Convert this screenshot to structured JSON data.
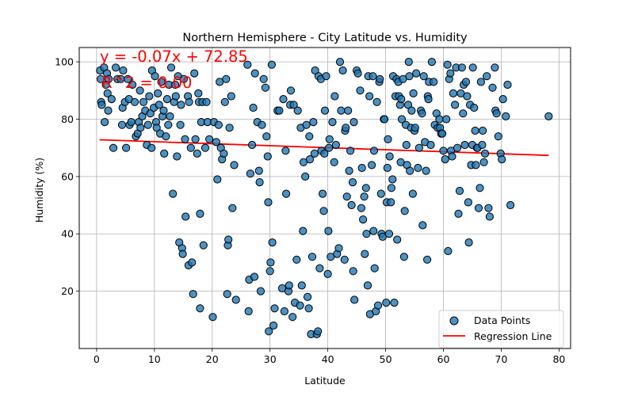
{
  "chart_data": {
    "type": "scatter",
    "title": "Northern Hemisphere - City Latitude vs. Humidity",
    "xlabel": "Latitude",
    "ylabel": "Humidity (%)",
    "xlim": [
      -3,
      82
    ],
    "ylim": [
      0,
      105
    ],
    "xticks": [
      0,
      10,
      20,
      30,
      40,
      50,
      60,
      70,
      80
    ],
    "yticks": [
      20,
      40,
      60,
      80,
      100
    ],
    "grid": true,
    "legend": {
      "placement": "lower right",
      "entries": [
        "Data Points",
        "Regression Line"
      ]
    },
    "annotations": {
      "equation": "y = -0.07x + 72.85",
      "r_squared": "R^2 = 0.00"
    },
    "regression": {
      "slope": -0.07,
      "intercept": 72.85,
      "x_range": [
        0.5,
        78.2
      ]
    },
    "colors": {
      "points": "#1f77b4",
      "edge": "#000000",
      "line": "#ff0000",
      "annotation": "#ff0000"
    },
    "points": [
      [
        0.6,
        97
      ],
      [
        0.7,
        94
      ],
      [
        0.8,
        86
      ],
      [
        0.9,
        85
      ],
      [
        1.3,
        98
      ],
      [
        1.4,
        79
      ],
      [
        1.6,
        92
      ],
      [
        1.8,
        96
      ],
      [
        1.9,
        89
      ],
      [
        2.0,
        83
      ],
      [
        2.1,
        94
      ],
      [
        2.6,
        87
      ],
      [
        2.9,
        70
      ],
      [
        3.3,
        98
      ],
      [
        3.6,
        94
      ],
      [
        4.2,
        94
      ],
      [
        4.4,
        78
      ],
      [
        4.5,
        84
      ],
      [
        4.6,
        97
      ],
      [
        4.9,
        86
      ],
      [
        5.1,
        70
      ],
      [
        5.4,
        94
      ],
      [
        5.6,
        87
      ],
      [
        5.7,
        78
      ],
      [
        6.0,
        79
      ],
      [
        6.2,
        92
      ],
      [
        6.6,
        86
      ],
      [
        6.8,
        74
      ],
      [
        7.1,
        75
      ],
      [
        7.3,
        79
      ],
      [
        7.5,
        90
      ],
      [
        7.6,
        77
      ],
      [
        7.9,
        81
      ],
      [
        8.1,
        86
      ],
      [
        8.4,
        83
      ],
      [
        8.7,
        71
      ],
      [
        8.9,
        78
      ],
      [
        9.1,
        88
      ],
      [
        9.3,
        82
      ],
      [
        9.5,
        70
      ],
      [
        9.6,
        97
      ],
      [
        9.9,
        84
      ],
      [
        10.1,
        95
      ],
      [
        10.3,
        79
      ],
      [
        10.4,
        77
      ],
      [
        10.6,
        89
      ],
      [
        10.8,
        85
      ],
      [
        11.0,
        75
      ],
      [
        11.2,
        93
      ],
      [
        11.4,
        81
      ],
      [
        11.6,
        83
      ],
      [
        11.7,
        68
      ],
      [
        12.0,
        74
      ],
      [
        12.2,
        87
      ],
      [
        12.4,
        78
      ],
      [
        12.5,
        92
      ],
      [
        12.7,
        81
      ],
      [
        12.9,
        98
      ],
      [
        13.2,
        54
      ],
      [
        13.4,
        86
      ],
      [
        13.6,
        92
      ],
      [
        13.7,
        88
      ],
      [
        13.9,
        67
      ],
      [
        14.1,
        95
      ],
      [
        14.3,
        37
      ],
      [
        14.5,
        78
      ],
      [
        14.6,
        85
      ],
      [
        14.8,
        35
      ],
      [
        14.9,
        33
      ],
      [
        15.1,
        94
      ],
      [
        15.3,
        73
      ],
      [
        15.4,
        46
      ],
      [
        15.8,
        88
      ],
      [
        15.9,
        29
      ],
      [
        16.0,
        86
      ],
      [
        16.3,
        70
      ],
      [
        16.5,
        30
      ],
      [
        16.7,
        19
      ],
      [
        16.9,
        96
      ],
      [
        17.1,
        73
      ],
      [
        17.4,
        68
      ],
      [
        17.6,
        89
      ],
      [
        17.7,
        86
      ],
      [
        17.9,
        47
      ],
      [
        17.9,
        14
      ],
      [
        18.1,
        79
      ],
      [
        18.3,
        86
      ],
      [
        18.5,
        36
      ],
      [
        18.8,
        70
      ],
      [
        19.0,
        86
      ],
      [
        19.2,
        79
      ],
      [
        19.5,
        73
      ],
      [
        20.1,
        11
      ],
      [
        20.3,
        79
      ],
      [
        20.7,
        72
      ],
      [
        20.9,
        59
      ],
      [
        21.1,
        78
      ],
      [
        21.3,
        93
      ],
      [
        21.5,
        70
      ],
      [
        21.7,
        66
      ],
      [
        22.0,
        68
      ],
      [
        22.2,
        86
      ],
      [
        22.4,
        94
      ],
      [
        22.6,
        19
      ],
      [
        22.7,
        36
      ],
      [
        22.8,
        38
      ],
      [
        23.0,
        77
      ],
      [
        23.3,
        88
      ],
      [
        23.5,
        49
      ],
      [
        23.8,
        64
      ],
      [
        24.1,
        17
      ],
      [
        26.1,
        99
      ],
      [
        26.3,
        13
      ],
      [
        26.4,
        24
      ],
      [
        26.6,
        61
      ],
      [
        26.9,
        71
      ],
      [
        27.1,
        84
      ],
      [
        27.3,
        25
      ],
      [
        27.4,
        96
      ],
      [
        27.8,
        79
      ],
      [
        28.1,
        62
      ],
      [
        28.2,
        58
      ],
      [
        28.4,
        20
      ],
      [
        28.6,
        78
      ],
      [
        28.9,
        94
      ],
      [
        29.2,
        91
      ],
      [
        29.4,
        74
      ],
      [
        29.6,
        67
      ],
      [
        29.7,
        51
      ],
      [
        29.8,
        6
      ],
      [
        30.0,
        27
      ],
      [
        30.1,
        30
      ],
      [
        30.3,
        99
      ],
      [
        30.4,
        37
      ],
      [
        30.6,
        8
      ],
      [
        30.8,
        14
      ],
      [
        31.3,
        83
      ],
      [
        31.6,
        83
      ],
      [
        32.1,
        21
      ],
      [
        32.3,
        87
      ],
      [
        32.5,
        13
      ],
      [
        32.7,
        69
      ],
      [
        32.8,
        54
      ],
      [
        33.2,
        20
      ],
      [
        33.3,
        22
      ],
      [
        33.5,
        85
      ],
      [
        33.6,
        90
      ],
      [
        33.9,
        11
      ],
      [
        34.1,
        85
      ],
      [
        34.3,
        16
      ],
      [
        34.6,
        31
      ],
      [
        34.8,
        83
      ],
      [
        35.2,
        15
      ],
      [
        35.3,
        77
      ],
      [
        35.5,
        22
      ],
      [
        35.7,
        41
      ],
      [
        35.8,
        65
      ],
      [
        36.1,
        60
      ],
      [
        36.3,
        78
      ],
      [
        36.5,
        18
      ],
      [
        36.7,
        14
      ],
      [
        36.8,
        74
      ],
      [
        36.9,
        66
      ],
      [
        37.1,
        5
      ],
      [
        37.3,
        32
      ],
      [
        37.5,
        79
      ],
      [
        37.7,
        68
      ],
      [
        37.8,
        97
      ],
      [
        38.1,
        5
      ],
      [
        38.3,
        6
      ],
      [
        38.4,
        95
      ],
      [
        38.6,
        28
      ],
      [
        38.8,
        94
      ],
      [
        38.9,
        69
      ],
      [
        39.1,
        54
      ],
      [
        39.3,
        48
      ],
      [
        39.4,
        68
      ],
      [
        39.5,
        83
      ],
      [
        39.7,
        95
      ],
      [
        40.0,
        26
      ],
      [
        40.1,
        41
      ],
      [
        40.2,
        70
      ],
      [
        40.3,
        73
      ],
      [
        40.5,
        32
      ],
      [
        40.8,
        79
      ],
      [
        41.1,
        65
      ],
      [
        41.2,
        88
      ],
      [
        41.4,
        71
      ],
      [
        41.6,
        33
      ],
      [
        41.9,
        35
      ],
      [
        42.1,
        100
      ],
      [
        42.3,
        83
      ],
      [
        42.6,
        97
      ],
      [
        42.9,
        31
      ],
      [
        43.0,
        76
      ],
      [
        43.1,
        77
      ],
      [
        43.3,
        53
      ],
      [
        43.5,
        83
      ],
      [
        43.7,
        62
      ],
      [
        43.9,
        69
      ],
      [
        44.1,
        50
      ],
      [
        44.3,
        58
      ],
      [
        44.4,
        27
      ],
      [
        44.5,
        79
      ],
      [
        44.6,
        17
      ],
      [
        45.0,
        97
      ],
      [
        45.2,
        96
      ],
      [
        45.6,
        90
      ],
      [
        45.8,
        49
      ],
      [
        45.9,
        63
      ],
      [
        46.1,
        45
      ],
      [
        46.3,
        53
      ],
      [
        46.4,
        33
      ],
      [
        46.6,
        56
      ],
      [
        46.7,
        40
      ],
      [
        46.9,
        22
      ],
      [
        47.0,
        95
      ],
      [
        47.2,
        88
      ],
      [
        47.3,
        12
      ],
      [
        47.6,
        64
      ],
      [
        47.8,
        95
      ],
      [
        47.9,
        41
      ],
      [
        48.0,
        69
      ],
      [
        48.1,
        28
      ],
      [
        48.3,
        13
      ],
      [
        48.5,
        86
      ],
      [
        48.7,
        15
      ],
      [
        48.9,
        93
      ],
      [
        49.0,
        94
      ],
      [
        49.2,
        54
      ],
      [
        49.3,
        40
      ],
      [
        49.5,
        39
      ],
      [
        49.7,
        80
      ],
      [
        49.8,
        80
      ],
      [
        50.1,
        16
      ],
      [
        50.2,
        51
      ],
      [
        50.3,
        63
      ],
      [
        50.4,
        73
      ],
      [
        50.6,
        40
      ],
      [
        50.7,
        67
      ],
      [
        50.9,
        51
      ],
      [
        51.0,
        56
      ],
      [
        51.2,
        59
      ],
      [
        51.3,
        95
      ],
      [
        51.5,
        16
      ],
      [
        51.7,
        88
      ],
      [
        51.9,
        94
      ],
      [
        52.0,
        38
      ],
      [
        52.2,
        93
      ],
      [
        52.3,
        88
      ],
      [
        52.5,
        85
      ],
      [
        52.6,
        65
      ],
      [
        52.7,
        87
      ],
      [
        52.8,
        80
      ],
      [
        53.0,
        94
      ],
      [
        53.2,
        32
      ],
      [
        53.3,
        48
      ],
      [
        53.5,
        78
      ],
      [
        53.6,
        71
      ],
      [
        53.7,
        64
      ],
      [
        53.9,
        85
      ],
      [
        54.0,
        100
      ],
      [
        54.1,
        95
      ],
      [
        54.2,
        62
      ],
      [
        54.4,
        77
      ],
      [
        54.5,
        83
      ],
      [
        54.7,
        54
      ],
      [
        54.8,
        89
      ],
      [
        55.0,
        76
      ],
      [
        55.1,
        77
      ],
      [
        55.3,
        96
      ],
      [
        55.6,
        63
      ],
      [
        55.8,
        70
      ],
      [
        56.1,
        83
      ],
      [
        56.3,
        82
      ],
      [
        56.4,
        43
      ],
      [
        56.6,
        95
      ],
      [
        56.8,
        72
      ],
      [
        57.0,
        62
      ],
      [
        57.2,
        31
      ],
      [
        57.3,
        88
      ],
      [
        57.4,
        87
      ],
      [
        57.5,
        93
      ],
      [
        57.8,
        71
      ],
      [
        58.0,
        100
      ],
      [
        58.3,
        93
      ],
      [
        58.5,
        78
      ],
      [
        58.8,
        82
      ],
      [
        59.0,
        77
      ],
      [
        59.3,
        80
      ],
      [
        59.4,
        77
      ],
      [
        59.6,
        75
      ],
      [
        59.8,
        75
      ],
      [
        60.0,
        69
      ],
      [
        60.3,
        66
      ],
      [
        60.5,
        80
      ],
      [
        60.7,
        99
      ],
      [
        60.8,
        34
      ],
      [
        61.0,
        94
      ],
      [
        61.2,
        96
      ],
      [
        61.3,
        69
      ],
      [
        61.5,
        67
      ],
      [
        61.7,
        89
      ],
      [
        62.0,
        85
      ],
      [
        62.2,
        98
      ],
      [
        62.4,
        70
      ],
      [
        62.6,
        47
      ],
      [
        62.8,
        55
      ],
      [
        63.0,
        89
      ],
      [
        63.2,
        98
      ],
      [
        63.4,
        82
      ],
      [
        63.5,
        92
      ],
      [
        63.7,
        71
      ],
      [
        63.9,
        93
      ],
      [
        64.1,
        88
      ],
      [
        64.3,
        51
      ],
      [
        64.4,
        37
      ],
      [
        64.6,
        85
      ],
      [
        64.8,
        64
      ],
      [
        65.0,
        71
      ],
      [
        65.1,
        98
      ],
      [
        65.3,
        84
      ],
      [
        65.5,
        76
      ],
      [
        65.6,
        64
      ],
      [
        65.8,
        70
      ],
      [
        65.9,
        70
      ],
      [
        66.1,
        49
      ],
      [
        66.3,
        56
      ],
      [
        66.5,
        93
      ],
      [
        66.7,
        71
      ],
      [
        66.8,
        76
      ],
      [
        67.0,
        65
      ],
      [
        67.2,
        68
      ],
      [
        67.5,
        95
      ],
      [
        67.8,
        49
      ],
      [
        68.0,
        46
      ],
      [
        68.5,
        91
      ],
      [
        68.9,
        98
      ],
      [
        69.0,
        83
      ],
      [
        69.2,
        82
      ],
      [
        69.5,
        74
      ],
      [
        69.9,
        68
      ],
      [
        70.1,
        66
      ],
      [
        70.3,
        87
      ],
      [
        70.8,
        81
      ],
      [
        71.1,
        92
      ],
      [
        71.6,
        50
      ],
      [
        78.2,
        81
      ]
    ]
  }
}
